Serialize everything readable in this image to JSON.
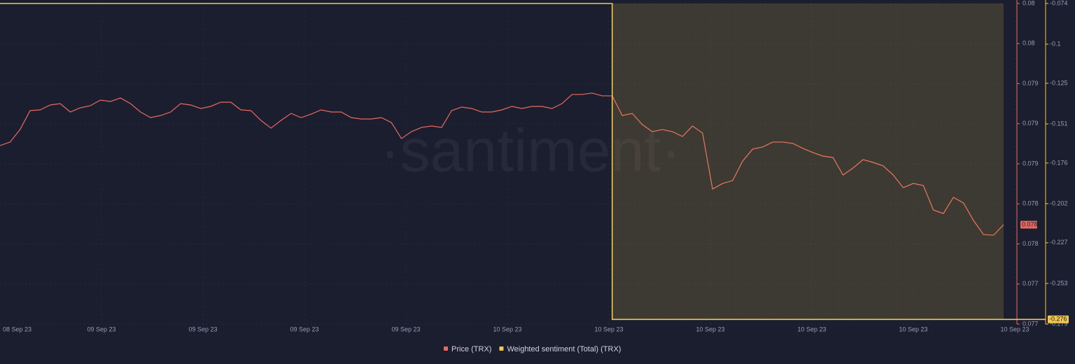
{
  "chart_data": {
    "type": "line",
    "watermark": "·santiment·",
    "x_tick_labels": [
      "08 Sep 23",
      "09 Sep 23",
      "09 Sep 23",
      "09 Sep 23",
      "09 Sep 23",
      "10 Sep 23",
      "10 Sep 23",
      "10 Sep 23",
      "10 Sep 23",
      "10 Sep 23",
      "10 Sep 23"
    ],
    "ylim": [
      0.077,
      0.0802
    ],
    "yticks": [
      {
        "value": 0.077,
        "label": "0.077"
      },
      {
        "value": 0.0774,
        "label": "0.077"
      },
      {
        "value": 0.0778,
        "label": "0.078"
      },
      {
        "value": 0.0782,
        "label": "0.078"
      },
      {
        "value": 0.0786,
        "label": "0.079"
      },
      {
        "value": 0.079,
        "label": "0.079"
      },
      {
        "value": 0.0794,
        "label": "0.079"
      },
      {
        "value": 0.0798,
        "label": "0.08"
      },
      {
        "value": 0.0802,
        "label": "0.08"
      }
    ],
    "y2lim": [
      -0.279,
      -0.074
    ],
    "y2ticks": [
      -0.279,
      -0.253,
      -0.227,
      -0.202,
      -0.176,
      -0.151,
      -0.125,
      -0.1,
      -0.074
    ],
    "grid": true,
    "series": [
      {
        "name": "Price (TRX)",
        "color": "#e9695e",
        "last_value_label": "0.078",
        "values": [
          0.078782,
          0.078817,
          0.078942,
          0.079131,
          0.079138,
          0.079187,
          0.079201,
          0.079117,
          0.079159,
          0.07918,
          0.079236,
          0.079222,
          0.079257,
          0.079201,
          0.079117,
          0.079061,
          0.079082,
          0.079117,
          0.079201,
          0.079187,
          0.079152,
          0.079173,
          0.079215,
          0.079215,
          0.079138,
          0.079131,
          0.079033,
          0.078956,
          0.079033,
          0.079103,
          0.079061,
          0.079096,
          0.079138,
          0.079117,
          0.079117,
          0.079061,
          0.079047,
          0.079047,
          0.079061,
          0.079012,
          0.078852,
          0.078921,
          0.078963,
          0.078977,
          0.078963,
          0.079131,
          0.079166,
          0.079152,
          0.079117,
          0.079117,
          0.079138,
          0.079173,
          0.079152,
          0.079173,
          0.079173,
          0.079152,
          0.079201,
          0.079292,
          0.079292,
          0.079306,
          0.079278,
          0.079278,
          0.079082,
          0.079103,
          0.078991,
          0.078921,
          0.078942,
          0.078921,
          0.078873,
          0.078977,
          0.078907,
          0.078348,
          0.078404,
          0.078432,
          0.078628,
          0.078747,
          0.078768,
          0.078817,
          0.078817,
          0.078803,
          0.078754,
          0.078712,
          0.078677,
          0.078663,
          0.078488,
          0.078558,
          0.078642,
          0.078614,
          0.078579,
          0.078488,
          0.078362,
          0.078404,
          0.078383,
          0.078139,
          0.078104,
          0.078265,
          0.078209,
          0.078034,
          0.077894,
          0.077887,
          0.077992
        ]
      },
      {
        "name": "Weighted sentiment (Total) (TRX)",
        "color": "#f2c94c",
        "axis": "y2",
        "last_value_label": "-0.276",
        "values": [
          -0.074,
          -0.074,
          -0.074,
          -0.074,
          -0.074,
          -0.074,
          -0.074,
          -0.074,
          -0.074,
          -0.074,
          -0.074,
          -0.074,
          -0.074,
          -0.074,
          -0.074,
          -0.074,
          -0.074,
          -0.074,
          -0.074,
          -0.074,
          -0.074,
          -0.074,
          -0.074,
          -0.074,
          -0.074,
          -0.074,
          -0.074,
          -0.074,
          -0.074,
          -0.074,
          -0.074,
          -0.074,
          -0.074,
          -0.074,
          -0.074,
          -0.074,
          -0.074,
          -0.074,
          -0.074,
          -0.074,
          -0.074,
          -0.074,
          -0.074,
          -0.074,
          -0.074,
          -0.074,
          -0.074,
          -0.074,
          -0.074,
          -0.074,
          -0.074,
          -0.074,
          -0.074,
          -0.074,
          -0.074,
          -0.074,
          -0.074,
          -0.074,
          -0.074,
          -0.074,
          -0.074,
          -0.276,
          -0.276,
          -0.276,
          -0.276,
          -0.276,
          -0.276,
          -0.276,
          -0.276,
          -0.276,
          -0.276,
          -0.276,
          -0.276,
          -0.276,
          -0.276,
          -0.276,
          -0.276,
          -0.276,
          -0.276,
          -0.276,
          -0.276,
          -0.276,
          -0.276,
          -0.276,
          -0.276,
          -0.276,
          -0.276,
          -0.276,
          -0.276,
          -0.276,
          -0.276,
          -0.276,
          -0.276,
          -0.276,
          -0.276,
          -0.276,
          -0.276,
          -0.276,
          -0.276,
          -0.276,
          -0.276
        ]
      }
    ]
  }
}
